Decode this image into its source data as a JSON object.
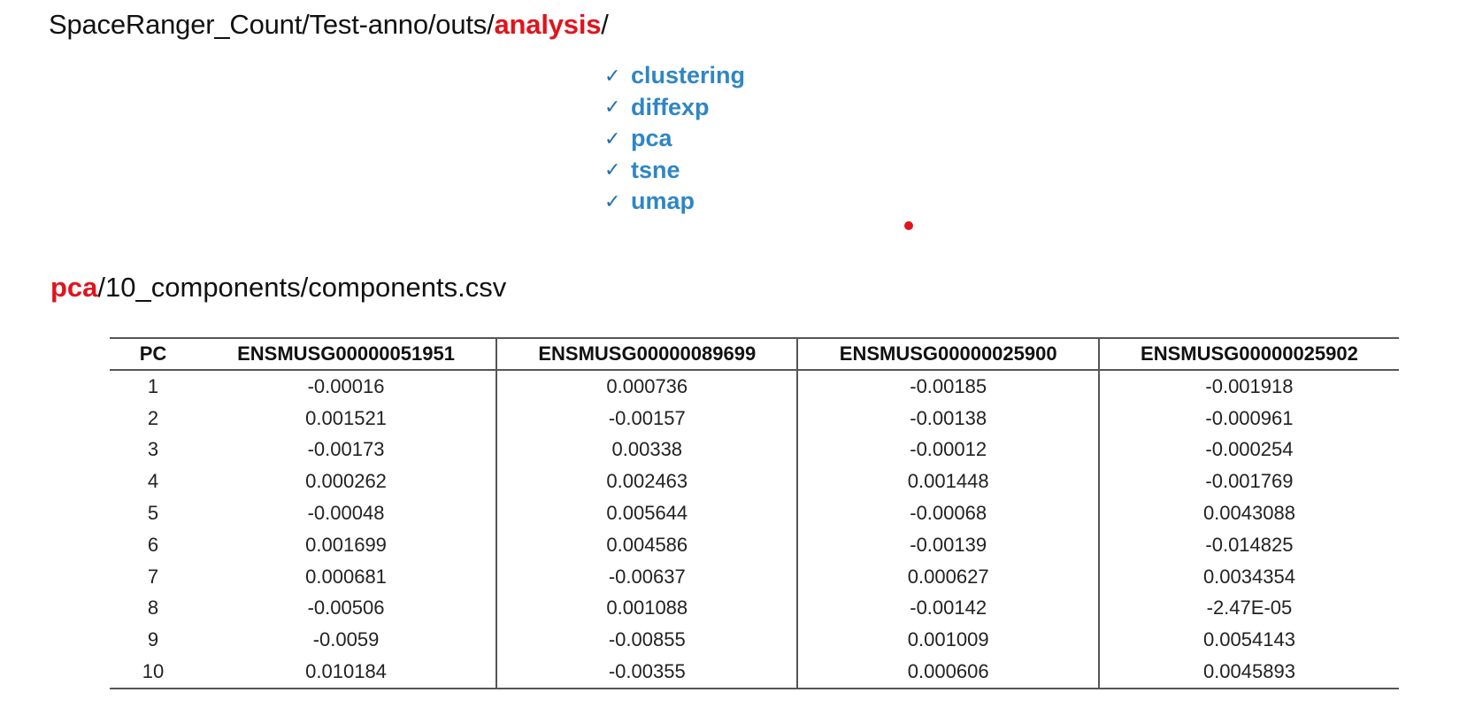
{
  "header": {
    "path_prefix": "SpaceRanger_Count/Test-anno/outs/",
    "path_highlight": "analysis",
    "path_suffix": "/"
  },
  "analysis_folders": [
    {
      "check": "✓",
      "label": "clustering"
    },
    {
      "check": "✓",
      "label": "diffexp"
    },
    {
      "check": "✓",
      "label": "pca"
    },
    {
      "check": "✓",
      "label": "tsne"
    },
    {
      "check": "✓",
      "label": "umap"
    }
  ],
  "file_path": {
    "highlight": "pca",
    "rest": "/10_components/components.csv"
  },
  "table": {
    "headers": [
      "PC",
      "ENSMUSG00000051951",
      "ENSMUSG00000089699",
      "ENSMUSG00000025900",
      "ENSMUSG00000025902"
    ],
    "rows": [
      [
        "1",
        "-0.00016",
        "0.000736",
        "-0.00185",
        "-0.001918"
      ],
      [
        "2",
        "0.001521",
        "-0.00157",
        "-0.00138",
        "-0.000961"
      ],
      [
        "3",
        "-0.00173",
        "0.00338",
        "-0.00012",
        "-0.000254"
      ],
      [
        "4",
        "0.000262",
        "0.002463",
        "0.001448",
        "-0.001769"
      ],
      [
        "5",
        "-0.00048",
        "0.005644",
        "-0.00068",
        "0.0043088"
      ],
      [
        "6",
        "0.001699",
        "0.004586",
        "-0.00139",
        "-0.014825"
      ],
      [
        "7",
        "0.000681",
        "-0.00637",
        "0.000627",
        "0.0034354"
      ],
      [
        "8",
        "-0.00506",
        "0.001088",
        "-0.00142",
        "-2.47E-05"
      ],
      [
        "9",
        "-0.0059",
        "-0.00855",
        "0.001009",
        "0.0054143"
      ],
      [
        "10",
        "0.010184",
        "-0.00355",
        "0.000606",
        "0.0045893"
      ]
    ]
  },
  "colors": {
    "highlight_red": "#e0141c",
    "folder_blue": "#2f86c4",
    "text": "#111111"
  }
}
